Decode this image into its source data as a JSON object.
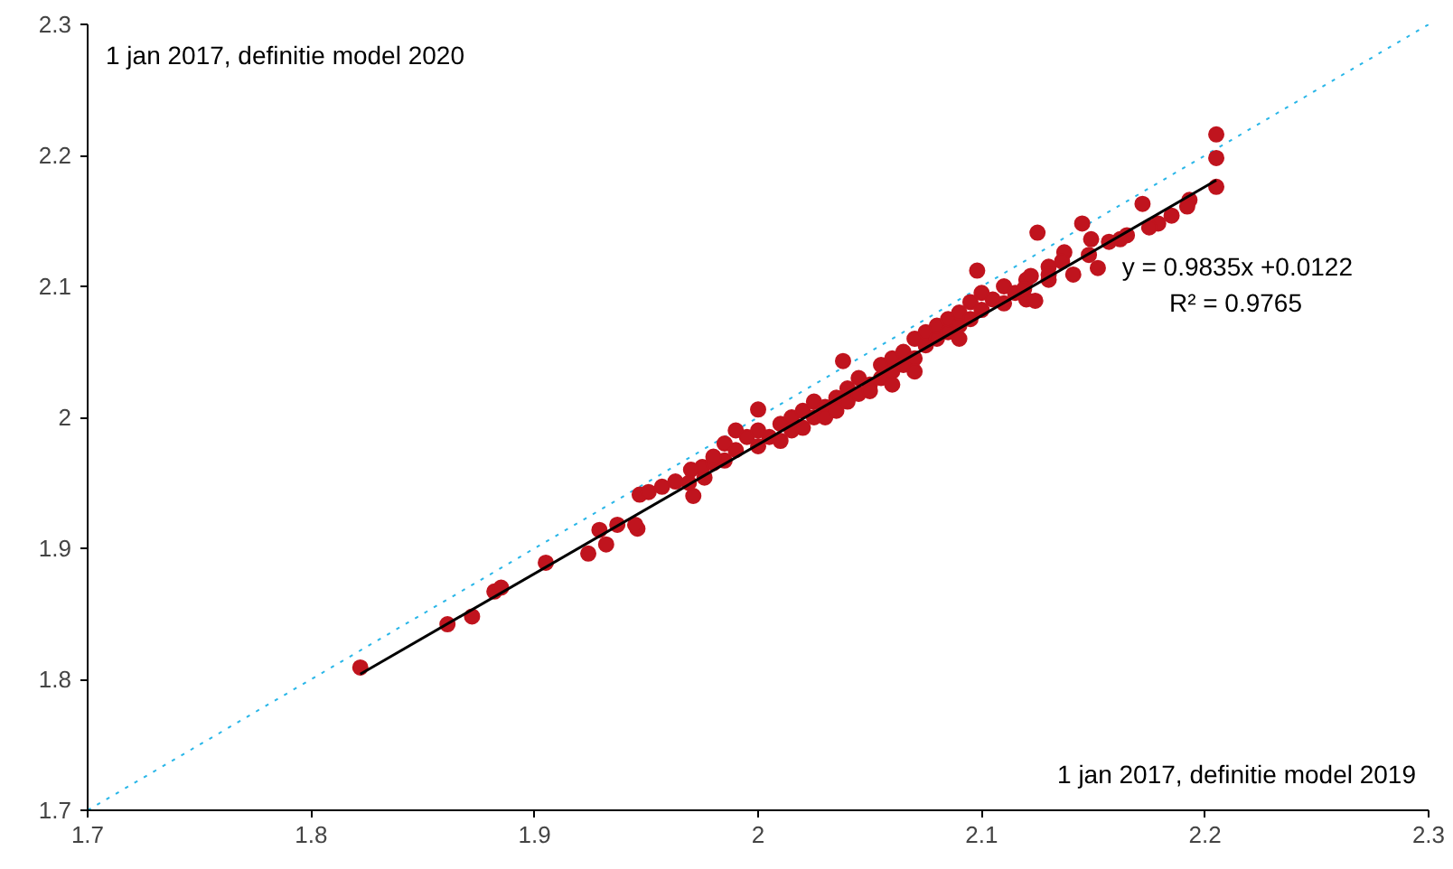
{
  "chart_data": {
    "type": "scatter",
    "xlim": [
      1.7,
      2.3
    ],
    "ylim": [
      1.7,
      2.3
    ],
    "xticks": [
      1.7,
      1.8,
      1.9,
      2,
      2.1,
      2.2,
      2.3
    ],
    "yticks": [
      1.7,
      1.8,
      1.9,
      2,
      2.1,
      2.2,
      2.3
    ],
    "grid": false,
    "annotations": [
      "1 jan 2017, definitie model 2020",
      "y = 0.9835x +0.0122",
      "R² = 0.9765",
      "1 jan 2017, definitie model 2019"
    ],
    "series": [
      {
        "type": "line",
        "color": "#29b6e8",
        "line_style": "dotted",
        "marker": "none",
        "x": [
          1.7,
          2.3
        ],
        "values": [
          1.7,
          2.3
        ]
      },
      {
        "color": "#c0141e",
        "marker": "circle",
        "x": [
          1.822,
          1.861,
          1.872,
          1.882,
          1.885,
          1.905,
          1.924,
          1.929,
          1.932,
          1.937,
          1.946,
          1.947,
          1.945,
          1.951,
          1.957,
          1.963,
          1.969,
          1.971,
          1.976,
          1.975,
          1.98,
          1.985,
          1.99,
          1.99,
          1.995,
          2.0,
          2.0,
          2.005,
          2.01,
          2.01,
          2.015,
          2.015,
          2.02,
          2.02,
          2.025,
          2.025,
          2.03,
          2.03,
          2.035,
          2.035,
          2.04,
          2.04,
          2.045,
          2.045,
          2.05,
          2.05,
          2.055,
          2.055,
          2.06,
          2.06,
          2.065,
          2.065,
          2.07,
          2.07,
          2.075,
          2.075,
          2.08,
          2.08,
          2.085,
          2.085,
          2.09,
          2.09,
          2.095,
          2.095,
          2.1,
          2.1,
          2.105,
          2.11,
          2.11,
          2.115,
          2.12,
          2.12,
          2.13,
          2.13,
          1.97,
          1.98,
          1.985,
          2.06,
          2.09,
          2.07,
          2.0,
          2.038,
          2.098,
          2.205,
          2.205,
          2.205,
          2.193,
          2.192,
          2.172,
          2.185,
          2.179,
          2.175,
          2.165,
          2.162,
          2.157,
          2.149,
          2.145,
          2.125,
          2.148,
          2.152,
          2.137,
          2.136,
          2.141,
          2.13,
          2.122,
          2.119,
          2.124
        ],
        "values": [
          1.809,
          1.842,
          1.848,
          1.867,
          1.87,
          1.889,
          1.896,
          1.914,
          1.903,
          1.918,
          1.915,
          1.941,
          1.918,
          1.943,
          1.947,
          1.951,
          1.95,
          1.94,
          1.954,
          1.962,
          1.965,
          1.967,
          1.99,
          1.975,
          1.985,
          1.978,
          1.99,
          1.985,
          1.995,
          1.982,
          2.0,
          1.99,
          1.992,
          2.005,
          2.0,
          2.012,
          2.008,
          2.0,
          2.015,
          2.005,
          2.012,
          2.022,
          2.018,
          2.03,
          2.025,
          2.02,
          2.03,
          2.04,
          2.035,
          2.045,
          2.04,
          2.05,
          2.045,
          2.06,
          2.055,
          2.065,
          2.06,
          2.07,
          2.065,
          2.075,
          2.07,
          2.08,
          2.075,
          2.088,
          2.082,
          2.095,
          2.09,
          2.1,
          2.087,
          2.095,
          2.105,
          2.09,
          2.105,
          2.115,
          1.96,
          1.97,
          1.98,
          2.025,
          2.06,
          2.035,
          2.006,
          2.043,
          2.112,
          2.216,
          2.198,
          2.176,
          2.166,
          2.161,
          2.163,
          2.154,
          2.148,
          2.145,
          2.139,
          2.136,
          2.134,
          2.136,
          2.148,
          2.141,
          2.124,
          2.114,
          2.126,
          2.119,
          2.109,
          2.109,
          2.108,
          2.098,
          2.089
        ]
      },
      {
        "type": "line",
        "color": "#000000",
        "line_style": "solid",
        "marker": "none",
        "x": [
          1.822,
          2.205
        ],
        "values": [
          1.804,
          2.181
        ]
      }
    ]
  }
}
